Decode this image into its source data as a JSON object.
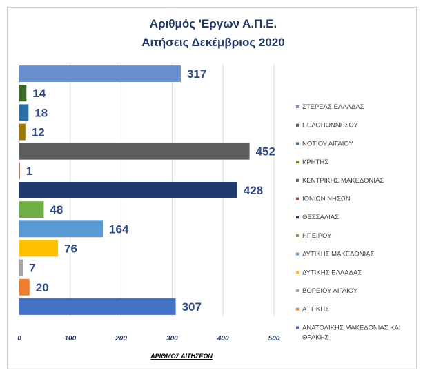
{
  "chart_data": {
    "type": "bar",
    "orientation": "horizontal",
    "title": [
      "Αριθμός 'Εργων Α.Π.Ε.",
      "Αιτήσεις Δεκέμβριος 2020"
    ],
    "xlabel": "ΑΡΙΘΜΟΣ ΑΙΤΗΣΕΩΝ",
    "ylabel": "",
    "xlim": [
      0,
      500
    ],
    "xticks": [
      "0",
      "100",
      "200",
      "300",
      "400",
      "500"
    ],
    "grid": true,
    "legend_position": "right",
    "categories": [
      "ΣΤΕΡΕΑΣ ΕΛΛΑΔΑΣ",
      "ΠΕΛΟΠΟΝΝΗΣΟΥ",
      "ΝΟΤΙΟΥ ΑΙΓΑΙΟΥ",
      "ΚΡΗΤΗΣ",
      "ΚΕΝΤΡΙΚΗΣ ΜΑΚΕΔΟΝΙΑΣ",
      "ΙΟΝΙΩΝ ΝΗΣΩΝ",
      "ΘΕΣΣΑΛΙΑΣ",
      "ΗΠΕΙΡΟΥ",
      "ΔΥΤΙΚΗΣ ΜΑΚΕΔΟΝΙΑΣ",
      "ΔΥΤΙΚΗΣ ΕΛΛΑΔΑΣ",
      "ΒΟΡΕΙΟΥ ΑΙΓΑΙΟΥ",
      "ΑΤΤΙΚΗΣ",
      "ΑΝΑΤΟΛΙΚΗΣ ΜΑΚΕΔΟΝΙΑΣ ΚΑΙ ΘΡΑΚΗΣ"
    ],
    "legend_lines": [
      [
        "ΣΤΕΡΕΑΣ ΕΛΛΑΔΑΣ"
      ],
      [
        "ΠΕΛΟΠΟΝΝΗΣΟΥ"
      ],
      [
        "ΝΟΤΙΟΥ ΑΙΓΑΙΟΥ"
      ],
      [
        "ΚΡΗΤΗΣ"
      ],
      [
        "ΚΕΝΤΡΙΚΗΣ ΜΑΚΕΔΟΝΙΑΣ"
      ],
      [
        "ΙΟΝΙΩΝ ΝΗΣΩΝ"
      ],
      [
        "ΘΕΣΣΑΛΙΑΣ"
      ],
      [
        "ΗΠΕΙΡΟΥ"
      ],
      [
        "ΔΥΤΙΚΗΣ ΜΑΚΕΔΟΝΙΑΣ"
      ],
      [
        "ΔΥΤΙΚΗΣ ΕΛΛΑΔΑΣ"
      ],
      [
        "ΒΟΡΕΙΟΥ ΑΙΓΑΙΟΥ"
      ],
      [
        "ΑΤΤΙΚΗΣ"
      ],
      [
        "ΑΝΑΤΟΛΙΚΗΣ ΜΑΚΕΔΟΝΙΑΣ ΚΑΙ",
        "ΘΡΑΚΗΣ"
      ]
    ],
    "values": [
      317,
      14,
      18,
      12,
      452,
      1,
      428,
      48,
      164,
      76,
      7,
      20,
      307
    ],
    "colors": [
      "#6a8fd0",
      "#3d6b2a",
      "#2e6fa3",
      "#9c7a0a",
      "#5f5f5f",
      "#a24a1e",
      "#203a6e",
      "#70ad47",
      "#5b9bd5",
      "#ffc000",
      "#a5a5a5",
      "#ed7d31",
      "#4472c4"
    ]
  }
}
